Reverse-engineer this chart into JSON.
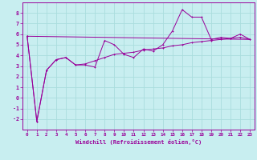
{
  "xlabel": "Windchill (Refroidissement éolien,°C)",
  "ylabel": "",
  "bg_color": "#c8eef0",
  "line_color": "#990099",
  "grid_color": "#aadddd",
  "xlim": [
    -0.5,
    23.5
  ],
  "ylim": [
    -3.0,
    9.0
  ],
  "xticks": [
    0,
    1,
    2,
    3,
    4,
    5,
    6,
    7,
    8,
    9,
    10,
    11,
    12,
    13,
    14,
    15,
    16,
    17,
    18,
    19,
    20,
    21,
    22,
    23
  ],
  "yticks": [
    -2,
    -1,
    0,
    1,
    2,
    3,
    4,
    5,
    6,
    7,
    8
  ],
  "series1_x": [
    0,
    1,
    2,
    3,
    4,
    5,
    6,
    7,
    8,
    9,
    10,
    11,
    12,
    13,
    14,
    15,
    16,
    17,
    18,
    19,
    20,
    21,
    22,
    23
  ],
  "series1_y": [
    5.8,
    -2.2,
    2.6,
    3.6,
    3.8,
    3.1,
    3.1,
    2.9,
    5.4,
    5.0,
    4.1,
    3.8,
    4.6,
    4.4,
    5.0,
    6.3,
    8.3,
    7.6,
    7.6,
    5.5,
    5.7,
    5.6,
    6.0,
    5.5
  ],
  "series2_x": [
    0,
    1,
    2,
    3,
    4,
    5,
    6,
    7,
    8,
    9,
    10,
    11,
    12,
    13,
    14,
    15,
    16,
    17,
    18,
    19,
    20,
    21,
    22,
    23
  ],
  "series2_y": [
    5.8,
    -2.2,
    2.6,
    3.6,
    3.8,
    3.1,
    3.2,
    3.5,
    3.8,
    4.1,
    4.2,
    4.3,
    4.5,
    4.6,
    4.7,
    4.9,
    5.0,
    5.2,
    5.3,
    5.4,
    5.5,
    5.6,
    5.7,
    5.5
  ],
  "series3_x": [
    0,
    23
  ],
  "series3_y": [
    5.8,
    5.5
  ]
}
